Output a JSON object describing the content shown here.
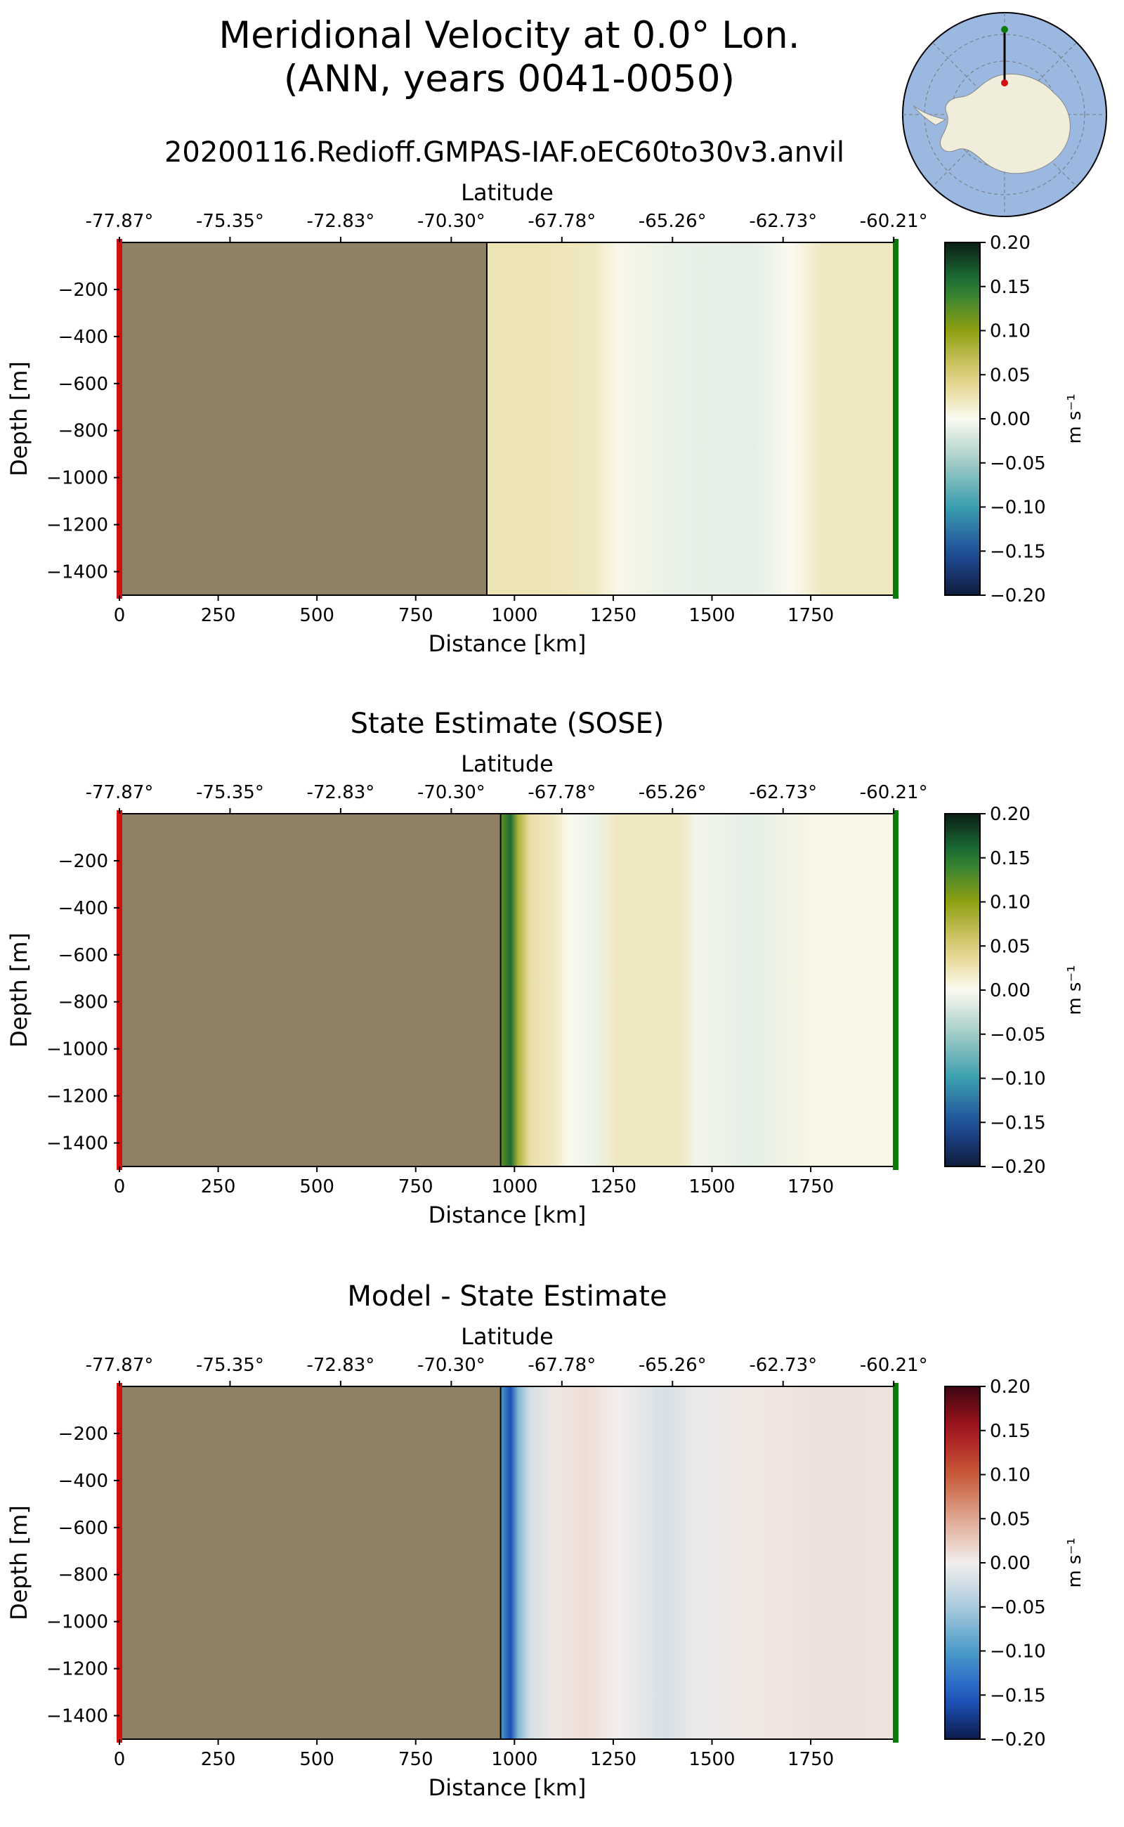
{
  "figure": {
    "title_line1": "Meridional Velocity at 0.0° Lon.",
    "title_line2": "(ANN, years 0041-0050)",
    "subtitle": "20200116.Redioff.GMPAS-IAF.oEC60to30v3.anvil",
    "inset_map": "south-polar-stereographic-map-of-antarctica",
    "colors": {
      "land": "#8f8163",
      "section_start_marker": "#d01010",
      "section_end_marker": "#0a7a0a",
      "inset_ocean": "#9bb8e0",
      "inset_land": "#f0eedb"
    }
  },
  "chart_data": [
    {
      "type": "heatmap",
      "title": "",
      "xlabel": "Distance [km]",
      "ylabel": "Depth [m]",
      "x2label": "Latitude",
      "xlim": [
        0,
        1965
      ],
      "ylim": [
        -1500,
        0
      ],
      "xticks": [
        0,
        250,
        500,
        750,
        1000,
        1250,
        1500,
        1750
      ],
      "xtick_labels": [
        "0",
        "250",
        "500",
        "750",
        "1000",
        "1250",
        "1500",
        "1750"
      ],
      "yticks": [
        -200,
        -400,
        -600,
        -800,
        -1000,
        -1200,
        -1400
      ],
      "ytick_labels": [
        "−200",
        "−400",
        "−600",
        "−800",
        "−1000",
        "−1200",
        "−1400"
      ],
      "lat_ticks_km": [
        0,
        280,
        560,
        840,
        1120,
        1400,
        1680,
        1960
      ],
      "lat_tick_labels": [
        "-77.87°",
        "-75.35°",
        "-72.83°",
        "-70.30°",
        "-67.78°",
        "-65.26°",
        "-62.73°",
        "-60.21°"
      ],
      "land_extent_km": [
        0,
        930
      ],
      "colormap": "diverging-yellow-green-blue",
      "colorbar": {
        "label": "m s⁻¹",
        "ticks": [
          0.2,
          0.15,
          0.1,
          0.05,
          0.0,
          -0.05,
          -0.1,
          -0.15,
          -0.2
        ],
        "tick_labels": [
          "0.20",
          "0.15",
          "0.10",
          "0.05",
          "0.00",
          "−0.05",
          "−0.10",
          "−0.15",
          "−0.20"
        ],
        "vmin": -0.2,
        "vmax": 0.2
      },
      "profile": [
        {
          "distance_km": 930,
          "value": 0.025
        },
        {
          "distance_km": 1050,
          "value": 0.025
        },
        {
          "distance_km": 1200,
          "value": 0.02
        },
        {
          "distance_km": 1260,
          "value": 0.003
        },
        {
          "distance_km": 1400,
          "value": -0.01
        },
        {
          "distance_km": 1600,
          "value": -0.012
        },
        {
          "distance_km": 1700,
          "value": 0.0
        },
        {
          "distance_km": 1780,
          "value": 0.02
        },
        {
          "distance_km": 1965,
          "value": 0.02
        }
      ]
    },
    {
      "type": "heatmap",
      "title": "State Estimate (SOSE)",
      "xlabel": "Distance [km]",
      "ylabel": "Depth [m]",
      "x2label": "Latitude",
      "xlim": [
        0,
        1965
      ],
      "ylim": [
        -1500,
        0
      ],
      "xticks": [
        0,
        250,
        500,
        750,
        1000,
        1250,
        1500,
        1750
      ],
      "xtick_labels": [
        "0",
        "250",
        "500",
        "750",
        "1000",
        "1250",
        "1500",
        "1750"
      ],
      "yticks": [
        -200,
        -400,
        -600,
        -800,
        -1000,
        -1200,
        -1400
      ],
      "ytick_labels": [
        "−200",
        "−400",
        "−600",
        "−800",
        "−1000",
        "−1200",
        "−1400"
      ],
      "lat_ticks_km": [
        0,
        280,
        560,
        840,
        1120,
        1400,
        1680,
        1960
      ],
      "lat_tick_labels": [
        "-77.87°",
        "-75.35°",
        "-72.83°",
        "-70.30°",
        "-67.78°",
        "-65.26°",
        "-62.73°",
        "-60.21°"
      ],
      "land_extent_km": [
        0,
        965
      ],
      "colormap": "diverging-yellow-green-blue",
      "colorbar": {
        "label": "m s⁻¹",
        "ticks": [
          0.2,
          0.15,
          0.1,
          0.05,
          0.0,
          -0.05,
          -0.1,
          -0.15,
          -0.2
        ],
        "tick_labels": [
          "0.20",
          "0.15",
          "0.10",
          "0.05",
          "0.00",
          "−0.05",
          "−0.10",
          "−0.15",
          "−0.20"
        ],
        "vmin": -0.2,
        "vmax": 0.2
      },
      "profile": [
        {
          "distance_km": 965,
          "value": 0.12
        },
        {
          "distance_km": 990,
          "value": 0.16
        },
        {
          "distance_km": 1010,
          "value": 0.08
        },
        {
          "distance_km": 1040,
          "value": 0.03
        },
        {
          "distance_km": 1100,
          "value": 0.02
        },
        {
          "distance_km": 1140,
          "value": 0.0
        },
        {
          "distance_km": 1200,
          "value": -0.008
        },
        {
          "distance_km": 1260,
          "value": 0.02
        },
        {
          "distance_km": 1420,
          "value": 0.02
        },
        {
          "distance_km": 1460,
          "value": -0.005
        },
        {
          "distance_km": 1600,
          "value": -0.012
        },
        {
          "distance_km": 1750,
          "value": 0.005
        },
        {
          "distance_km": 1965,
          "value": 0.005
        }
      ]
    },
    {
      "type": "heatmap",
      "title": "Model - State Estimate",
      "xlabel": "Distance [km]",
      "ylabel": "Depth [m]",
      "x2label": "Latitude",
      "xlim": [
        0,
        1965
      ],
      "ylim": [
        -1500,
        0
      ],
      "xticks": [
        0,
        250,
        500,
        750,
        1000,
        1250,
        1500,
        1750
      ],
      "xtick_labels": [
        "0",
        "250",
        "500",
        "750",
        "1000",
        "1250",
        "1500",
        "1750"
      ],
      "yticks": [
        -200,
        -400,
        -600,
        -800,
        -1000,
        -1200,
        -1400
      ],
      "ytick_labels": [
        "−200",
        "−400",
        "−600",
        "−800",
        "−1000",
        "−1200",
        "−1400"
      ],
      "lat_ticks_km": [
        0,
        280,
        560,
        840,
        1120,
        1400,
        1680,
        1960
      ],
      "lat_tick_labels": [
        "-77.87°",
        "-75.35°",
        "-72.83°",
        "-70.30°",
        "-67.78°",
        "-65.26°",
        "-62.73°",
        "-60.21°"
      ],
      "land_extent_km": [
        0,
        965
      ],
      "colormap": "diverging-red-white-blue",
      "colorbar": {
        "label": "m s⁻¹",
        "ticks": [
          0.2,
          0.15,
          0.1,
          0.05,
          0.0,
          -0.05,
          -0.1,
          -0.15,
          -0.2
        ],
        "tick_labels": [
          "0.20",
          "0.15",
          "0.10",
          "0.05",
          "0.00",
          "−0.05",
          "−0.10",
          "−0.15",
          "−0.20"
        ],
        "vmin": -0.2,
        "vmax": 0.2
      },
      "profile": [
        {
          "distance_km": 965,
          "value": -0.1
        },
        {
          "distance_km": 990,
          "value": -0.16
        },
        {
          "distance_km": 1010,
          "value": -0.07
        },
        {
          "distance_km": 1040,
          "value": -0.02
        },
        {
          "distance_km": 1100,
          "value": 0.005
        },
        {
          "distance_km": 1180,
          "value": 0.012
        },
        {
          "distance_km": 1260,
          "value": 0.0
        },
        {
          "distance_km": 1380,
          "value": -0.02
        },
        {
          "distance_km": 1460,
          "value": -0.005
        },
        {
          "distance_km": 1600,
          "value": 0.005
        },
        {
          "distance_km": 1800,
          "value": 0.01
        },
        {
          "distance_km": 1965,
          "value": 0.008
        }
      ]
    }
  ]
}
